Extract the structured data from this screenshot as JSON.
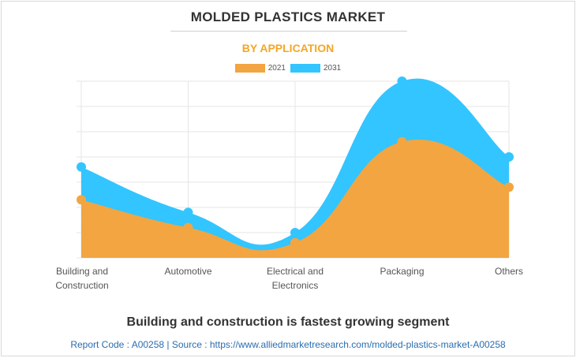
{
  "header": {
    "title": "MOLDED PLASTICS MARKET",
    "subtitle": "BY APPLICATION"
  },
  "chart_data": {
    "type": "area",
    "title": "MOLDED PLASTICS MARKET",
    "subtitle": "BY APPLICATION",
    "categories": [
      [
        "Building and",
        "Construction"
      ],
      [
        "Automotive"
      ],
      [
        "Electrical and",
        "Electronics"
      ],
      [
        "Packaging"
      ],
      [
        "Others"
      ]
    ],
    "series": [
      {
        "name": "2021",
        "color": "#f2a541",
        "values": [
          23,
          12,
          6,
          46,
          28
        ]
      },
      {
        "name": "2031",
        "color": "#33c5ff",
        "values": [
          36,
          18,
          10,
          70,
          40
        ]
      }
    ],
    "ylim": [
      0,
      70
    ],
    "grid": true,
    "legend": "top-center",
    "xlabel": "",
    "ylabel": ""
  },
  "footer": {
    "caption": "Building and construction is fastest growing segment",
    "source": "Report Code : A00258  |  Source : https://www.alliedmarketresearch.com/molded-plastics-market-A00258"
  }
}
